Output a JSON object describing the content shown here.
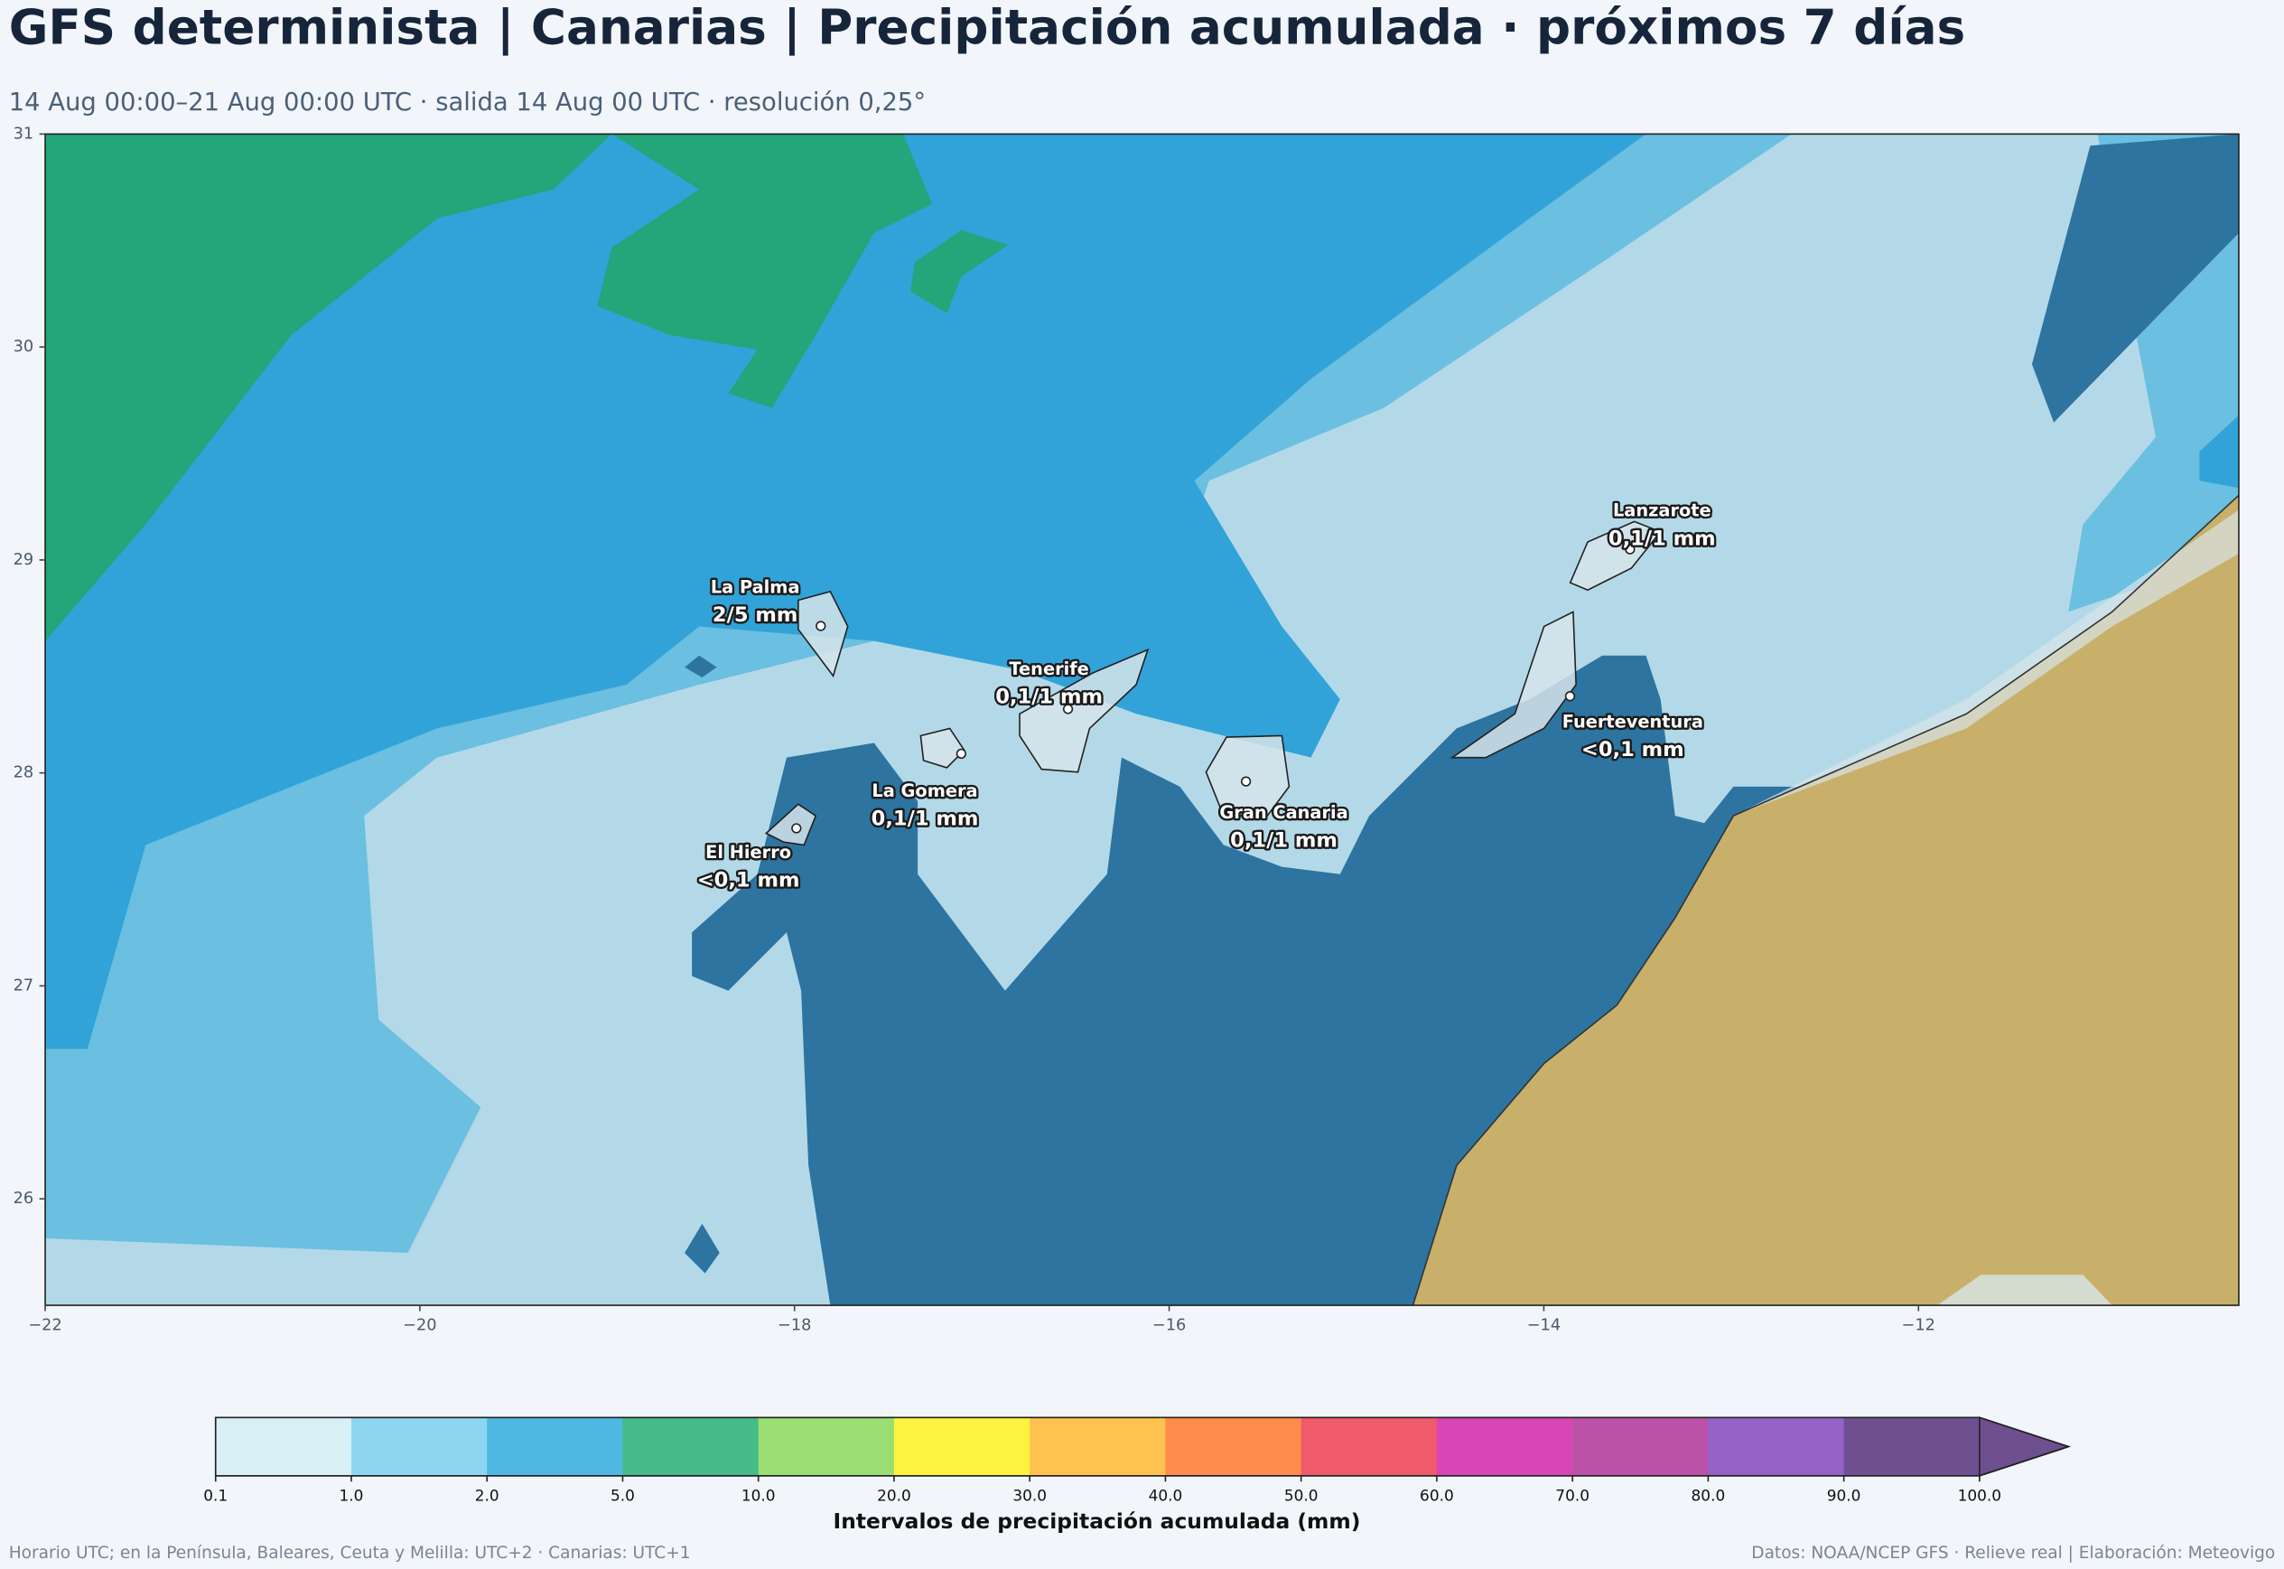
{
  "title": "GFS determinista | Canarias | Precipitación acumulada · próximos 7 días",
  "subtitle": "14 Aug 00:00–21 Aug 00:00 UTC · salida 14 Aug 00 UTC · resolución 0,25°",
  "map": {
    "xlim": [
      -22,
      -10.29
    ],
    "ylim": [
      25.5,
      31
    ],
    "xticks": [
      {
        "value": -22,
        "label": "−22"
      },
      {
        "value": -20,
        "label": "−20"
      },
      {
        "value": -18,
        "label": "−18"
      },
      {
        "value": -16,
        "label": "−16"
      },
      {
        "value": -14,
        "label": "−14"
      },
      {
        "value": -12,
        "label": "−12"
      }
    ],
    "yticks": [
      26,
      27,
      28,
      29,
      30,
      31
    ],
    "islands": [
      {
        "name": "La Palma",
        "value": "2/5 mm",
        "lon": -17.86,
        "lat": 28.69
      },
      {
        "name": "Tenerife",
        "value": "0,1/1 mm",
        "lon": -16.54,
        "lat": 28.3
      },
      {
        "name": "La Gomera",
        "value": "0,1/1 mm",
        "lon": -17.11,
        "lat": 28.09
      },
      {
        "name": "El Hierro",
        "value": "<0,1 mm",
        "lon": -17.99,
        "lat": 27.74
      },
      {
        "name": "Gran Canaria",
        "value": "0,1/1 mm",
        "lon": -15.59,
        "lat": 27.96
      },
      {
        "name": "Lanzarote",
        "value": "0,1/1 mm",
        "lon": -13.54,
        "lat": 29.05
      },
      {
        "name": "Fuerteventura",
        "value": "<0,1 mm",
        "lon": -13.86,
        "lat": 28.36
      }
    ]
  },
  "colorbar": {
    "label": "Intervalos de precipitación acumulada (mm)",
    "levels": [
      0.1,
      {
        "value": 1,
        "label": "1.0"
      },
      {
        "value": 2,
        "label": "2.0"
      },
      {
        "value": 5,
        "label": "5.0"
      },
      {
        "value": 10,
        "label": "10.0"
      },
      {
        "value": 20,
        "label": "20.0"
      },
      {
        "value": 30,
        "label": "30.0"
      },
      {
        "value": 40,
        "label": "40.0"
      },
      {
        "value": 50,
        "label": "50.0"
      },
      {
        "value": 60,
        "label": "60.0"
      },
      {
        "value": 70,
        "label": "70.0"
      },
      {
        "value": 80,
        "label": "80.0"
      },
      {
        "value": 90,
        "label": "90.0"
      },
      {
        "value": 100,
        "label": "100.0"
      }
    ],
    "colors": [
      "#d8eff6",
      "#8ed6ef",
      "#4fb8e2",
      "#44bb88",
      "#9ade74",
      "#fdf23f",
      "#ffc24e",
      "#ff8c4c",
      "#f05b6b",
      "#d846b6",
      "#bb52a8",
      "#9562c8",
      "#6e4f90"
    ]
  },
  "footer": {
    "left": "Horario UTC; en la Península, Baleares, Ceuta y Melilla: UTC+2 · Canarias: UTC+1",
    "right": "Datos: NOAA/NCEP GFS · Relieve real | Elaboración: Meteovigo"
  }
}
